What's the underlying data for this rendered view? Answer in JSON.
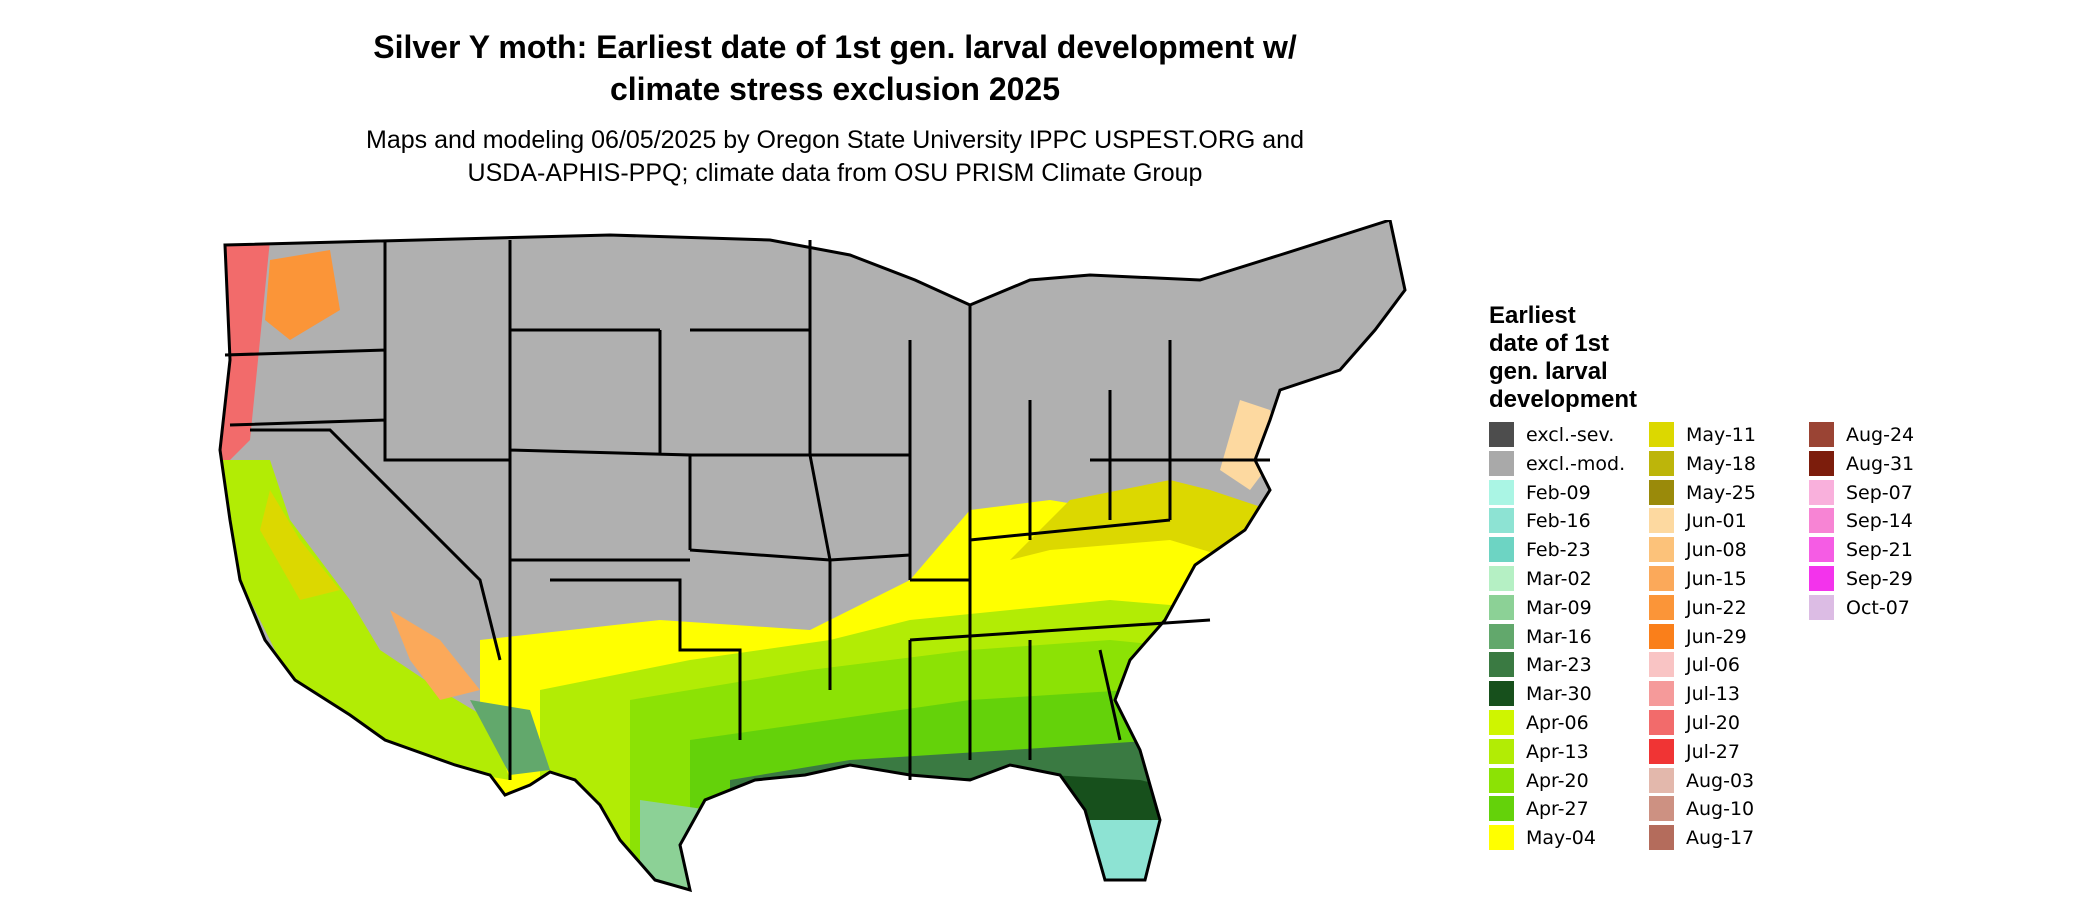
{
  "title_line1": "Silver Y moth: Earliest date of 1st gen. larval development w/",
  "title_line2": "climate stress exclusion 2025",
  "subtitle_line1": "Maps and modeling 06/05/2025 by Oregon State University IPPC USPEST.ORG and",
  "subtitle_line2": "USDA-APHIS-PPQ; climate data from OSU PRISM Climate Group",
  "legend": {
    "title_lines": [
      "Earliest",
      "date of 1st",
      "gen. larval",
      "development"
    ],
    "items": [
      {
        "label": "excl.-sev.",
        "color": "#4d4d4d"
      },
      {
        "label": "excl.-mod.",
        "color": "#a9a9a9"
      },
      {
        "label": "Feb-09",
        "color": "#aaf5e4"
      },
      {
        "label": "Feb-16",
        "color": "#8de3d3"
      },
      {
        "label": "Feb-23",
        "color": "#6dd4c3"
      },
      {
        "label": "Mar-02",
        "color": "#b5f0c4"
      },
      {
        "label": "Mar-09",
        "color": "#8cd196"
      },
      {
        "label": "Mar-16",
        "color": "#62a86c"
      },
      {
        "label": "Mar-23",
        "color": "#3a7a42"
      },
      {
        "label": "Mar-30",
        "color": "#17501c"
      },
      {
        "label": "Apr-06",
        "color": "#cff500"
      },
      {
        "label": "Apr-13",
        "color": "#b2ec05"
      },
      {
        "label": "Apr-20",
        "color": "#8ce205"
      },
      {
        "label": "Apr-27",
        "color": "#64d20a"
      },
      {
        "label": "May-04",
        "color": "#ffff00"
      },
      {
        "label": "May-11",
        "color": "#dcd800"
      },
      {
        "label": "May-18",
        "color": "#bdb50a"
      },
      {
        "label": "May-25",
        "color": "#9a8a0a"
      },
      {
        "label": "Jun-01",
        "color": "#fdd9a0"
      },
      {
        "label": "Jun-08",
        "color": "#fcc27a"
      },
      {
        "label": "Jun-15",
        "color": "#fba95a"
      },
      {
        "label": "Jun-22",
        "color": "#fb9538"
      },
      {
        "label": "Jun-29",
        "color": "#fa7f1a"
      },
      {
        "label": "Jul-06",
        "color": "#f9c4c4"
      },
      {
        "label": "Jul-13",
        "color": "#f59a9a"
      },
      {
        "label": "Jul-20",
        "color": "#f26b6b"
      },
      {
        "label": "Jul-27",
        "color": "#f03434"
      },
      {
        "label": "Aug-03",
        "color": "#e3b8ac"
      },
      {
        "label": "Aug-10",
        "color": "#cd9182"
      },
      {
        "label": "Aug-17",
        "color": "#b46c5c"
      },
      {
        "label": "Aug-24",
        "color": "#9a4434"
      },
      {
        "label": "Aug-31",
        "color": "#7c1d0c"
      },
      {
        "label": "Sep-07",
        "color": "#f9b0dc"
      },
      {
        "label": "Sep-14",
        "color": "#f784d4"
      },
      {
        "label": "Sep-21",
        "color": "#f55ce4"
      },
      {
        "label": "Sep-29",
        "color": "#f333ec"
      },
      {
        "label": "Oct-07",
        "color": "#dcbce4"
      }
    ]
  }
}
